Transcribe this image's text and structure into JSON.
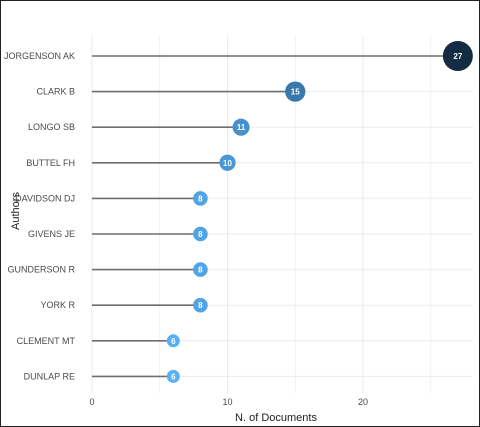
{
  "chart_data": {
    "type": "lollipop",
    "xlabel": "N. of Documents",
    "ylabel": "Authors",
    "xlim": [
      0,
      28
    ],
    "x_ticks": [
      0,
      10,
      20
    ],
    "grid": true,
    "categories": [
      "JORGENSON AK",
      "CLARK B",
      "LONGO SB",
      "BUTTEL FH",
      "DAVIDSON DJ",
      "GIVENS JE",
      "GUNDERSON R",
      "YORK R",
      "CLEMENT MT",
      "DUNLAP RE"
    ],
    "values": [
      27,
      15,
      11,
      10,
      8,
      8,
      8,
      8,
      6,
      6
    ],
    "colors": {
      "high": "#132b43",
      "low": "#56b1f7",
      "stem": "#6e6e6e",
      "grid": "#ebebeb"
    }
  }
}
